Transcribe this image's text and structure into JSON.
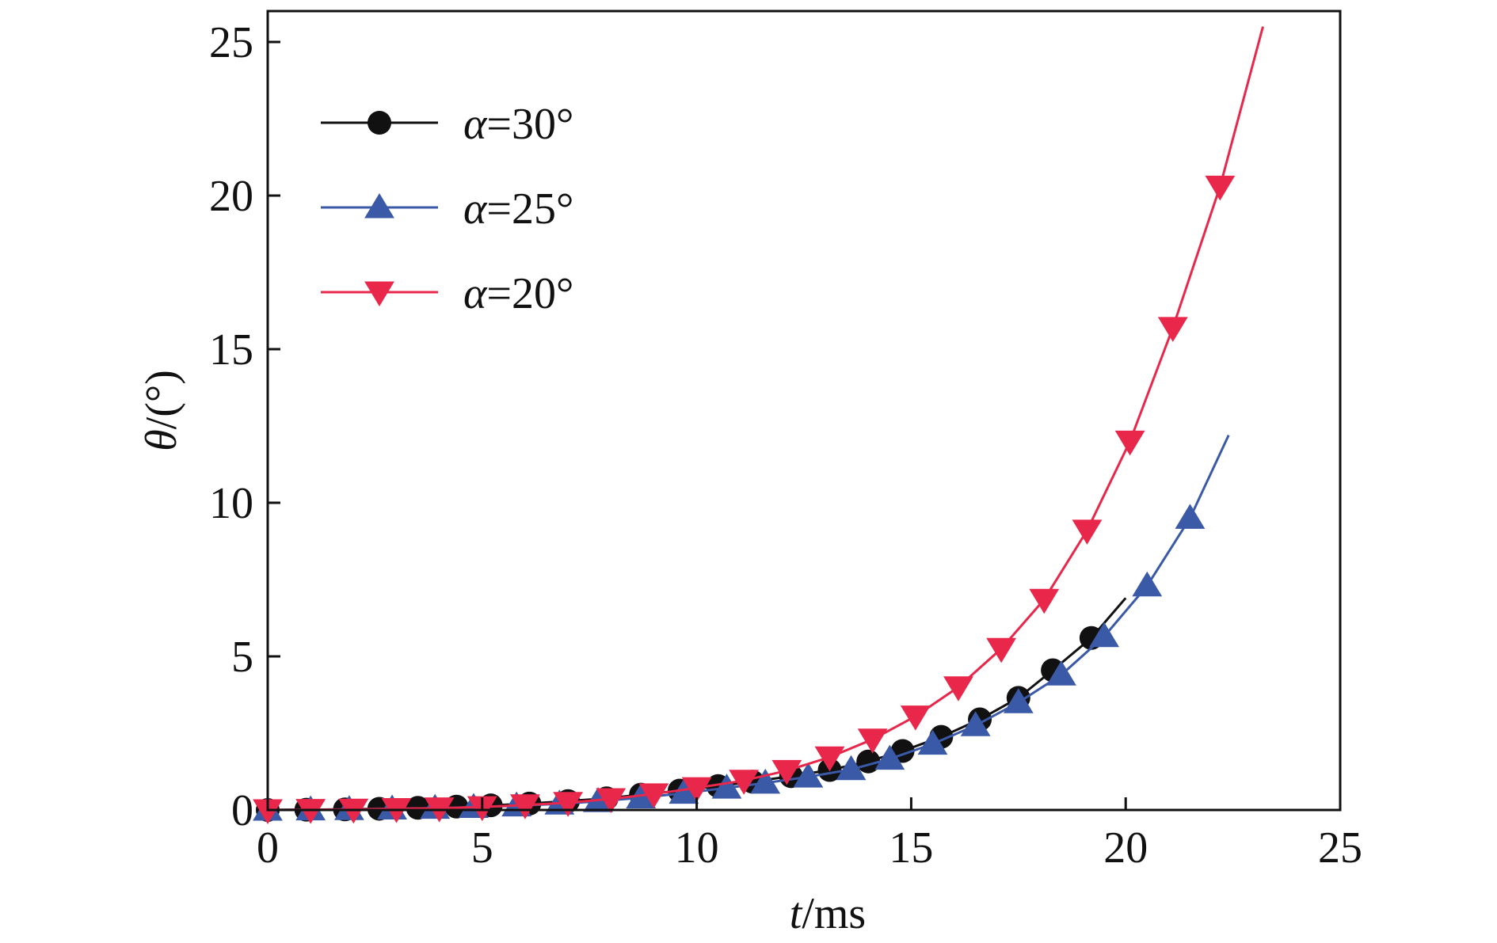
{
  "chart_data": {
    "type": "line",
    "xlabel": {
      "var": "t",
      "rest": "/ms"
    },
    "ylabel": {
      "var": "θ",
      "rest": "/(°)"
    },
    "xlim": [
      0,
      25
    ],
    "ylim": [
      0,
      26
    ],
    "xticks": [
      0,
      5,
      10,
      15,
      20,
      25
    ],
    "yticks": [
      0,
      5,
      10,
      15,
      20,
      25
    ],
    "grid": false,
    "legend_position": "top-left",
    "series": [
      {
        "name": "α=30°",
        "label_var": "α",
        "label_rest": "=30°",
        "color": "#111111",
        "marker": "circle",
        "x": [
          0,
          0.9,
          1.8,
          2.6,
          3.5,
          4.4,
          5.2,
          6.1,
          7.0,
          7.9,
          8.7,
          9.6,
          10.5,
          11.3,
          12.2,
          13.1,
          14.0,
          14.8,
          15.7,
          16.6,
          17.5,
          18.3,
          19.2,
          20.0
        ],
        "y": [
          0,
          0.01,
          0.02,
          0.04,
          0.07,
          0.11,
          0.15,
          0.21,
          0.29,
          0.38,
          0.5,
          0.63,
          0.78,
          0.92,
          1.1,
          1.3,
          1.58,
          1.92,
          2.38,
          2.95,
          3.65,
          4.55,
          5.6,
          6.9
        ],
        "marker_x": [
          0,
          0.9,
          1.8,
          2.6,
          3.5,
          4.4,
          5.2,
          6.1,
          7.0,
          7.9,
          8.7,
          9.6,
          10.5,
          11.3,
          12.2,
          13.1,
          14.0,
          14.8,
          15.7,
          16.6,
          17.5,
          18.3,
          19.2
        ],
        "marker_y": [
          0,
          0.01,
          0.02,
          0.04,
          0.07,
          0.11,
          0.15,
          0.21,
          0.29,
          0.38,
          0.5,
          0.63,
          0.78,
          0.92,
          1.1,
          1.3,
          1.58,
          1.92,
          2.38,
          2.95,
          3.65,
          4.55,
          5.6
        ]
      },
      {
        "name": "α=25°",
        "label_var": "α",
        "label_rest": "=25°",
        "color": "#3a5aa8",
        "marker": "triangle-up",
        "x": [
          0,
          1.0,
          1.9,
          2.9,
          3.9,
          4.8,
          5.8,
          6.8,
          7.7,
          8.7,
          9.7,
          10.7,
          11.6,
          12.6,
          13.6,
          14.5,
          15.5,
          16.5,
          17.5,
          18.5,
          19.5,
          20.5,
          21.5,
          22.4
        ],
        "y": [
          0,
          0.01,
          0.02,
          0.04,
          0.06,
          0.09,
          0.14,
          0.2,
          0.28,
          0.4,
          0.55,
          0.72,
          0.88,
          1.08,
          1.32,
          1.66,
          2.15,
          2.75,
          3.5,
          4.4,
          5.65,
          7.3,
          9.5,
          12.2
        ],
        "marker_x": [
          0,
          1.0,
          1.9,
          2.9,
          3.9,
          4.8,
          5.8,
          6.8,
          7.7,
          8.7,
          9.7,
          10.7,
          11.6,
          12.6,
          13.6,
          14.5,
          15.5,
          16.5,
          17.5,
          18.5,
          19.5,
          20.5,
          21.5
        ],
        "marker_y": [
          0,
          0.01,
          0.02,
          0.04,
          0.06,
          0.09,
          0.14,
          0.2,
          0.28,
          0.4,
          0.55,
          0.72,
          0.88,
          1.08,
          1.32,
          1.66,
          2.15,
          2.75,
          3.5,
          4.4,
          5.65,
          7.3,
          9.5
        ]
      },
      {
        "name": "α=20°",
        "label_var": "α",
        "label_rest": "=20°",
        "color": "#e8274b",
        "marker": "triangle-down",
        "x": [
          0,
          1.0,
          2.0,
          3.0,
          4.0,
          5.0,
          6.0,
          7.0,
          8.0,
          9.0,
          10.0,
          11.1,
          12.1,
          13.1,
          14.1,
          15.1,
          16.1,
          17.1,
          18.1,
          19.1,
          20.1,
          21.1,
          22.2,
          23.2
        ],
        "y": [
          0,
          0.01,
          0.02,
          0.04,
          0.06,
          0.1,
          0.16,
          0.24,
          0.36,
          0.52,
          0.72,
          0.96,
          1.28,
          1.72,
          2.3,
          3.05,
          4.0,
          5.25,
          6.85,
          9.1,
          12.0,
          15.7,
          20.3,
          25.5
        ],
        "marker_x": [
          0,
          1.0,
          2.0,
          3.0,
          4.0,
          5.0,
          6.0,
          7.0,
          8.0,
          9.0,
          10.0,
          11.1,
          12.1,
          13.1,
          14.1,
          15.1,
          16.1,
          17.1,
          18.1,
          19.1,
          20.1,
          21.1,
          22.2
        ],
        "marker_y": [
          0,
          0.01,
          0.02,
          0.04,
          0.06,
          0.1,
          0.16,
          0.24,
          0.36,
          0.52,
          0.72,
          0.96,
          1.28,
          1.72,
          2.3,
          3.05,
          4.0,
          5.25,
          6.85,
          9.1,
          12.0,
          15.7,
          20.3
        ]
      }
    ]
  }
}
